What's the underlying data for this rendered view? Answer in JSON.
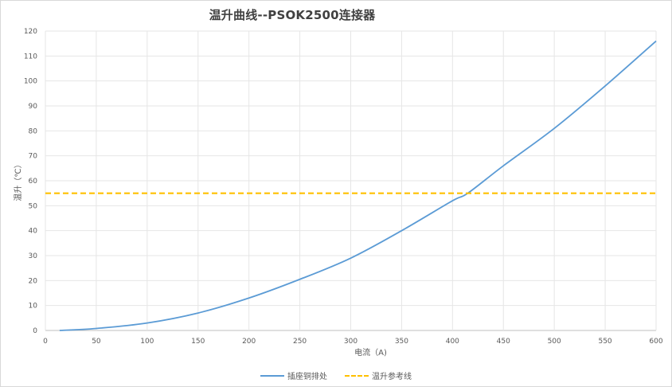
{
  "chart_data": {
    "type": "line",
    "title": "温升曲线--PSOK2500连接器",
    "xlabel": "电流（A)",
    "ylabel": "温升（℃）",
    "xlim": [
      0,
      600
    ],
    "ylim": [
      0,
      120
    ],
    "x_ticks": [
      0,
      50,
      100,
      150,
      200,
      250,
      300,
      350,
      400,
      450,
      500,
      550,
      600
    ],
    "y_ticks": [
      0,
      10,
      20,
      30,
      40,
      50,
      60,
      70,
      80,
      90,
      100,
      110,
      120
    ],
    "grid": true,
    "legend_position": "bottom",
    "series": [
      {
        "name": "插座铜排处",
        "color": "#5b9bd5",
        "style": "solid",
        "x": [
          14,
          50,
          100,
          150,
          200,
          250,
          300,
          350,
          400,
          415,
          450,
          500,
          550,
          600
        ],
        "y": [
          0,
          0.8,
          3,
          7,
          13,
          20.5,
          29,
          40,
          52,
          55,
          66,
          81,
          98,
          116
        ]
      },
      {
        "name": "温升参考线",
        "color": "#ffc000",
        "style": "dashed",
        "x": [
          0,
          600
        ],
        "y": [
          55,
          55
        ]
      }
    ]
  },
  "legend": {
    "items": [
      {
        "label": "插座铜排处"
      },
      {
        "label": "温升参考线"
      }
    ]
  }
}
